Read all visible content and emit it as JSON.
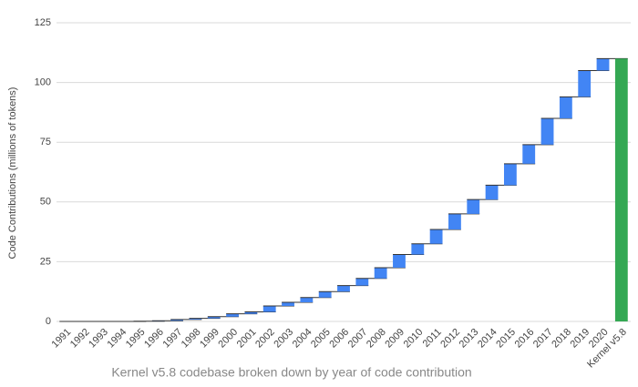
{
  "chart_data": {
    "type": "waterfall",
    "title": "Kernel v5.8 codebase broken down by year of code contribution",
    "y_label": "Code Contributions (millions of tokens)",
    "categories": [
      "1991",
      "1992",
      "1993",
      "1994",
      "1995",
      "1996",
      "1997",
      "1998",
      "1999",
      "2000",
      "2001",
      "2002",
      "2003",
      "2004",
      "2005",
      "2006",
      "2007",
      "2008",
      "2009",
      "2010",
      "2011",
      "2012",
      "2013",
      "2014",
      "2015",
      "2016",
      "2017",
      "2018",
      "2019",
      "2020"
    ],
    "values": [
      0,
      0,
      0,
      0,
      0.1,
      0.2,
      0.5,
      0.5,
      0.7,
      1.2,
      0.8,
      2.5,
      1.5,
      2,
      2.5,
      2.5,
      3,
      4.5,
      5.5,
      4.5,
      6,
      6.5,
      6,
      6,
      9,
      8,
      11,
      9,
      11,
      5
    ],
    "color": "#4285f4",
    "total": {
      "label": "Kernel v5.8",
      "value": 110,
      "color": "#34a853"
    },
    "ylim": [
      0,
      125
    ],
    "yticks": [
      0,
      25,
      50,
      75,
      100,
      125
    ],
    "grid": true
  }
}
